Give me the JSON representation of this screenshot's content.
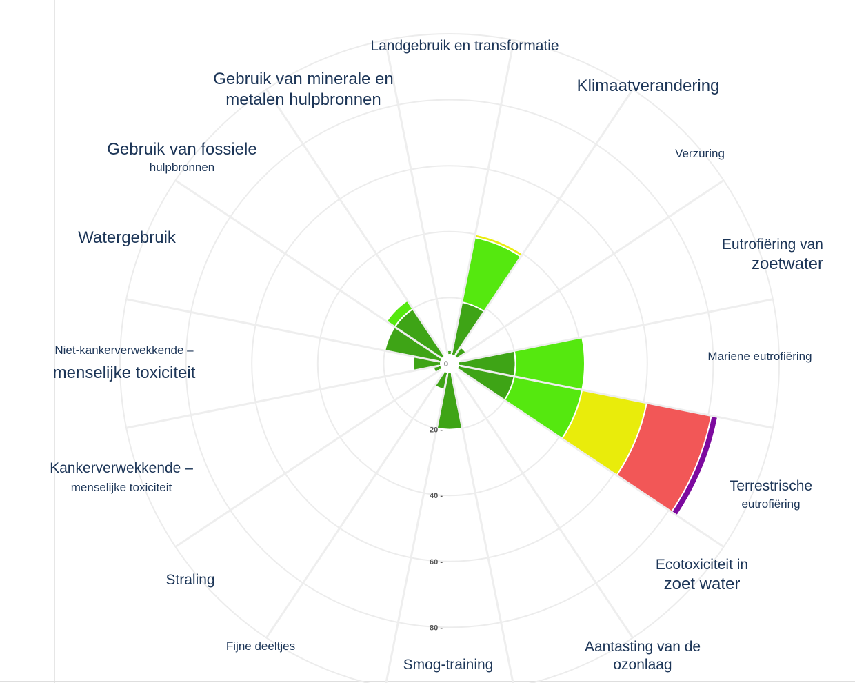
{
  "chart_data": {
    "type": "polar-bar",
    "title": "",
    "radial_axis": {
      "ticks": [
        "0",
        "20",
        "40",
        "60",
        "80"
      ],
      "max": 100,
      "grid": true
    },
    "levels": [
      {
        "name": "low",
        "color": "#3ea416"
      },
      {
        "name": "medium",
        "color": "#55e80f"
      },
      {
        "name": "high",
        "color": "#e9ec0b"
      },
      {
        "name": "very-high",
        "color": "#f25757"
      },
      {
        "name": "extreme",
        "color": "#7d0a9e"
      }
    ],
    "categories": [
      {
        "line1": "Landgebruik en transformatie",
        "line2": "",
        "values": [
          4
        ]
      },
      {
        "line1": "Klimaatverandering",
        "line2": "",
        "values": [
          19,
          39,
          40
        ]
      },
      {
        "line1": "Verzuring",
        "line2": "",
        "values": [
          6
        ]
      },
      {
        "line1": "Eutrofiëring van",
        "line2": "zoetwater",
        "values": [
          1
        ]
      },
      {
        "line1": "Mariene eutrofiëring",
        "line2": "",
        "values": [
          20,
          41
        ]
      },
      {
        "line1": "Terrestrische",
        "line2": "eutrofiëring",
        "values": [
          20,
          41,
          61,
          81,
          83
        ]
      },
      {
        "line1": "Ecotoxiciteit in",
        "line2": "zoet water",
        "values": []
      },
      {
        "line1": "Aantasting van de",
        "line2": "ozonlaag",
        "values": []
      },
      {
        "line1": "Smog-training",
        "line2": "",
        "values": [
          20
        ]
      },
      {
        "line1": "Fijne deeltjes",
        "line2": "",
        "values": [
          8
        ]
      },
      {
        "line1": "Straling",
        "line2": "",
        "values": []
      },
      {
        "line1": "Kankerverwekkende –",
        "line2": "menselijke toxiciteit",
        "values": [
          5
        ]
      },
      {
        "line1": "Niet-kankerverwekkende –",
        "line2": "menselijke toxiciteit",
        "values": [
          11
        ]
      },
      {
        "line1": "Watergebruik",
        "line2": "",
        "values": [
          20
        ]
      },
      {
        "line1": "Gebruik van fossiele",
        "line2": "hulpbronnen",
        "values": [
          20,
          23
        ]
      },
      {
        "line1": "Gebruik van minerale en",
        "line2": "metalen hulpbronnen",
        "values": [
          3
        ]
      }
    ]
  }
}
